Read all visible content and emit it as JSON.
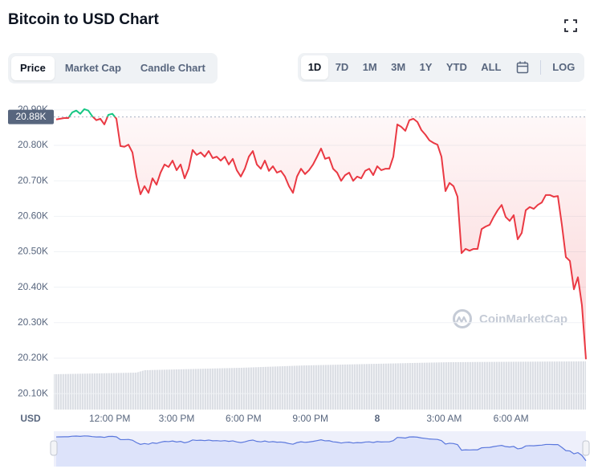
{
  "chart_data": {
    "type": "line",
    "title": "Bitcoin to USD Chart",
    "tabs": [
      "Price",
      "Market Cap",
      "Candle Chart"
    ],
    "ranges": [
      "1D",
      "7D",
      "1M",
      "3M",
      "1Y",
      "YTD",
      "ALL"
    ],
    "log_button": "LOG",
    "y_axis_label": "USD",
    "watermark": "CoinMarketCap",
    "color_up": "#16c784",
    "color_down": "#ea3943",
    "grid": true,
    "reference": {
      "value": 20880,
      "label": "20.88K"
    },
    "xlim": [
      9.6,
      33.36
    ],
    "xticks": [
      {
        "value": 12,
        "label": "12:00 PM"
      },
      {
        "value": 15,
        "label": "3:00 PM"
      },
      {
        "value": 18,
        "label": "6:00 PM"
      },
      {
        "value": 21,
        "label": "9:00 PM"
      },
      {
        "value": 24,
        "label": "8"
      },
      {
        "value": 27,
        "label": "3:00 AM"
      },
      {
        "value": 30,
        "label": "6:00 AM"
      }
    ],
    "ylim": [
      20055,
      20920
    ],
    "yticks": [
      {
        "value": 20900,
        "label": "20.90K"
      },
      {
        "value": 20800,
        "label": "20.80K"
      },
      {
        "value": 20700,
        "label": "20.70K"
      },
      {
        "value": 20600,
        "label": "20.60K"
      },
      {
        "value": 20500,
        "label": "20.50K"
      },
      {
        "value": 20400,
        "label": "20.40K"
      },
      {
        "value": 20300,
        "label": "20.30K"
      },
      {
        "value": 20200,
        "label": "20.20K"
      },
      {
        "value": 20100,
        "label": "20.10K"
      }
    ],
    "x": [
      9.6,
      9.78,
      9.96,
      10.14,
      10.32,
      10.5,
      10.68,
      10.86,
      11.04,
      11.22,
      11.4,
      11.58,
      11.76,
      11.94,
      12.12,
      12.3,
      12.48,
      12.66,
      12.84,
      13.02,
      13.2,
      13.38,
      13.56,
      13.74,
      13.92,
      14.1,
      14.28,
      14.46,
      14.64,
      14.82,
      15,
      15.18,
      15.36,
      15.54,
      15.72,
      15.9,
      16.08,
      16.26,
      16.44,
      16.62,
      16.8,
      16.98,
      17.16,
      17.34,
      17.52,
      17.7,
      17.88,
      18.06,
      18.24,
      18.42,
      18.6,
      18.78,
      18.96,
      19.14,
      19.32,
      19.5,
      19.68,
      19.86,
      20.04,
      20.22,
      20.4,
      20.58,
      20.76,
      20.94,
      21.12,
      21.3,
      21.48,
      21.66,
      21.84,
      22.02,
      22.2,
      22.38,
      22.56,
      22.74,
      22.92,
      23.1,
      23.28,
      23.46,
      23.64,
      23.82,
      24,
      24.18,
      24.36,
      24.54,
      24.72,
      24.9,
      25.08,
      25.26,
      25.44,
      25.62,
      25.8,
      25.98,
      26.16,
      26.34,
      26.52,
      26.7,
      26.88,
      27.06,
      27.24,
      27.42,
      27.6,
      27.78,
      27.96,
      28.14,
      28.32,
      28.5,
      28.68,
      28.86,
      29.04,
      29.22,
      29.4,
      29.58,
      29.76,
      29.94,
      30.12,
      30.3,
      30.48,
      30.66,
      30.84,
      31.02,
      31.2,
      31.38,
      31.56,
      31.74,
      31.92,
      32.1,
      32.28,
      32.46,
      32.64,
      32.82,
      33,
      33.18,
      33.36
    ],
    "values": [
      20873,
      20875,
      20877,
      20877,
      20893,
      20898,
      20889,
      20902,
      20898,
      20882,
      20871,
      20875,
      20859,
      20886,
      20889,
      20875,
      20798,
      20796,
      20802,
      20780,
      20712,
      20662,
      20685,
      20666,
      20707,
      20689,
      20723,
      20746,
      20739,
      20757,
      20730,
      20746,
      20707,
      20734,
      20787,
      20773,
      20780,
      20768,
      20784,
      20764,
      20768,
      20757,
      20768,
      20746,
      20762,
      20730,
      20712,
      20734,
      20768,
      20784,
      20746,
      20734,
      20757,
      20728,
      20741,
      20723,
      20728,
      20712,
      20685,
      20666,
      20712,
      20734,
      20719,
      20730,
      20746,
      20768,
      20791,
      20762,
      20766,
      20734,
      20723,
      20700,
      20716,
      20723,
      20700,
      20712,
      20707,
      20728,
      20734,
      20716,
      20741,
      20730,
      20734,
      20734,
      20768,
      20859,
      20852,
      20841,
      20871,
      20875,
      20866,
      20843,
      20830,
      20814,
      20807,
      20802,
      20768,
      20671,
      20694,
      20685,
      20655,
      20496,
      20508,
      20503,
      20508,
      20508,
      20564,
      20571,
      20576,
      20598,
      20617,
      20632,
      20598,
      20587,
      20603,
      20535,
      20553,
      20617,
      20626,
      20621,
      20632,
      20639,
      20660,
      20660,
      20655,
      20657,
      20576,
      20485,
      20474,
      20394,
      20428,
      20349,
      20197
    ]
  }
}
